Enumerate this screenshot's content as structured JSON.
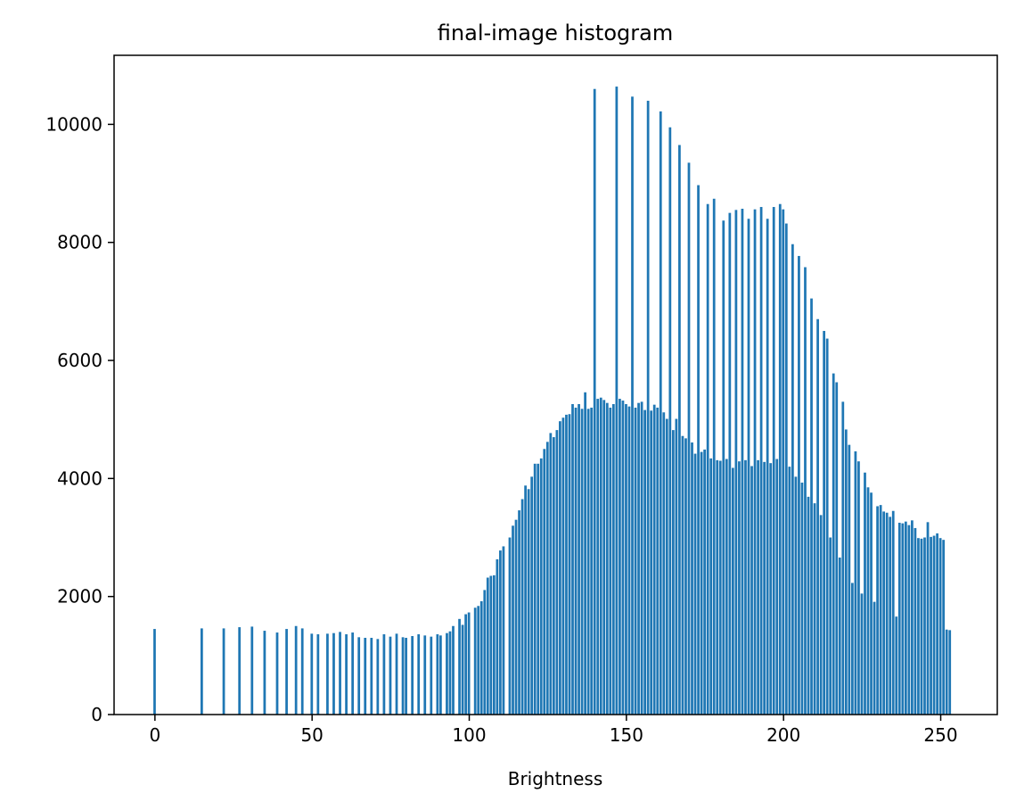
{
  "chart_data": {
    "type": "bar",
    "title": "final-image histogram",
    "xlabel": "Brightness",
    "ylabel": "",
    "xlim": [
      -13,
      268
    ],
    "ylim": [
      0,
      11170
    ],
    "xticks": [
      0,
      50,
      100,
      150,
      200,
      250
    ],
    "yticks": [
      0,
      2000,
      4000,
      6000,
      8000,
      10000
    ],
    "bar_color": "#1f77b4",
    "grid": false,
    "legend": "none",
    "bins": [
      [
        0,
        1450
      ],
      [
        15,
        1460
      ],
      [
        22,
        1460
      ],
      [
        27,
        1480
      ],
      [
        31,
        1490
      ],
      [
        35,
        1420
      ],
      [
        39,
        1390
      ],
      [
        42,
        1450
      ],
      [
        45,
        1500
      ],
      [
        47,
        1460
      ],
      [
        50,
        1370
      ],
      [
        52,
        1360
      ],
      [
        55,
        1370
      ],
      [
        57,
        1380
      ],
      [
        59,
        1400
      ],
      [
        61,
        1360
      ],
      [
        63,
        1390
      ],
      [
        65,
        1310
      ],
      [
        67,
        1300
      ],
      [
        69,
        1300
      ],
      [
        71,
        1280
      ],
      [
        73,
        1360
      ],
      [
        75,
        1320
      ],
      [
        77,
        1370
      ],
      [
        79,
        1310
      ],
      [
        80,
        1300
      ],
      [
        82,
        1330
      ],
      [
        84,
        1360
      ],
      [
        86,
        1340
      ],
      [
        88,
        1320
      ],
      [
        90,
        1360
      ],
      [
        91,
        1340
      ],
      [
        93,
        1380
      ],
      [
        94,
        1410
      ],
      [
        95,
        1500
      ],
      [
        97,
        1620
      ],
      [
        98,
        1520
      ],
      [
        99,
        1700
      ],
      [
        100,
        1730
      ],
      [
        102,
        1810
      ],
      [
        103,
        1840
      ],
      [
        104,
        1920
      ],
      [
        105,
        2110
      ],
      [
        106,
        2320
      ],
      [
        107,
        2350
      ],
      [
        108,
        2360
      ],
      [
        109,
        2630
      ],
      [
        110,
        2780
      ],
      [
        111,
        2850
      ],
      [
        113,
        3000
      ],
      [
        114,
        3200
      ],
      [
        115,
        3300
      ],
      [
        116,
        3460
      ],
      [
        117,
        3650
      ],
      [
        118,
        3880
      ],
      [
        119,
        3820
      ],
      [
        120,
        4030
      ],
      [
        121,
        4250
      ],
      [
        122,
        4250
      ],
      [
        123,
        4340
      ],
      [
        124,
        4500
      ],
      [
        125,
        4620
      ],
      [
        126,
        4770
      ],
      [
        127,
        4700
      ],
      [
        128,
        4820
      ],
      [
        129,
        4970
      ],
      [
        130,
        5030
      ],
      [
        131,
        5080
      ],
      [
        132,
        5090
      ],
      [
        133,
        5260
      ],
      [
        134,
        5200
      ],
      [
        135,
        5260
      ],
      [
        136,
        5180
      ],
      [
        137,
        5460
      ],
      [
        138,
        5180
      ],
      [
        139,
        5200
      ],
      [
        140,
        10600
      ],
      [
        141,
        5350
      ],
      [
        142,
        5370
      ],
      [
        143,
        5330
      ],
      [
        144,
        5280
      ],
      [
        145,
        5200
      ],
      [
        146,
        5260
      ],
      [
        147,
        10640
      ],
      [
        148,
        5350
      ],
      [
        149,
        5320
      ],
      [
        150,
        5260
      ],
      [
        151,
        5220
      ],
      [
        152,
        10470
      ],
      [
        153,
        5200
      ],
      [
        154,
        5280
      ],
      [
        155,
        5300
      ],
      [
        156,
        5160
      ],
      [
        157,
        10400
      ],
      [
        158,
        5150
      ],
      [
        159,
        5250
      ],
      [
        160,
        5200
      ],
      [
        161,
        10220
      ],
      [
        162,
        5120
      ],
      [
        163,
        5010
      ],
      [
        164,
        9950
      ],
      [
        165,
        4820
      ],
      [
        166,
        5010
      ],
      [
        167,
        9650
      ],
      [
        168,
        4720
      ],
      [
        169,
        4680
      ],
      [
        170,
        9350
      ],
      [
        171,
        4610
      ],
      [
        172,
        4420
      ],
      [
        173,
        8970
      ],
      [
        174,
        4450
      ],
      [
        175,
        4490
      ],
      [
        176,
        8650
      ],
      [
        177,
        4340
      ],
      [
        178,
        8740
      ],
      [
        179,
        4310
      ],
      [
        180,
        4300
      ],
      [
        181,
        8370
      ],
      [
        182,
        4330
      ],
      [
        183,
        8500
      ],
      [
        184,
        4180
      ],
      [
        185,
        8550
      ],
      [
        186,
        4290
      ],
      [
        187,
        8570
      ],
      [
        188,
        4310
      ],
      [
        189,
        8400
      ],
      [
        190,
        4210
      ],
      [
        191,
        8560
      ],
      [
        192,
        4310
      ],
      [
        193,
        8600
      ],
      [
        194,
        4280
      ],
      [
        195,
        8400
      ],
      [
        196,
        4260
      ],
      [
        197,
        8600
      ],
      [
        198,
        4330
      ],
      [
        199,
        8650
      ],
      [
        200,
        8560
      ],
      [
        201,
        8320
      ],
      [
        202,
        4200
      ],
      [
        203,
        7970
      ],
      [
        204,
        4030
      ],
      [
        205,
        7770
      ],
      [
        206,
        3930
      ],
      [
        207,
        7580
      ],
      [
        208,
        3690
      ],
      [
        209,
        7050
      ],
      [
        210,
        3580
      ],
      [
        211,
        6700
      ],
      [
        212,
        3380
      ],
      [
        213,
        6500
      ],
      [
        214,
        6370
      ],
      [
        215,
        3000
      ],
      [
        216,
        5780
      ],
      [
        217,
        5630
      ],
      [
        218,
        2660
      ],
      [
        219,
        5300
      ],
      [
        220,
        4830
      ],
      [
        221,
        4570
      ],
      [
        222,
        2230
      ],
      [
        223,
        4460
      ],
      [
        224,
        4290
      ],
      [
        225,
        2050
      ],
      [
        226,
        4100
      ],
      [
        227,
        3850
      ],
      [
        228,
        3760
      ],
      [
        229,
        1910
      ],
      [
        230,
        3530
      ],
      [
        231,
        3550
      ],
      [
        232,
        3440
      ],
      [
        233,
        3420
      ],
      [
        234,
        3350
      ],
      [
        235,
        3450
      ],
      [
        236,
        1660
      ],
      [
        237,
        3250
      ],
      [
        238,
        3240
      ],
      [
        239,
        3270
      ],
      [
        240,
        3210
      ],
      [
        241,
        3290
      ],
      [
        242,
        3160
      ],
      [
        243,
        2990
      ],
      [
        244,
        2980
      ],
      [
        245,
        3000
      ],
      [
        246,
        3260
      ],
      [
        247,
        3010
      ],
      [
        248,
        3030
      ],
      [
        249,
        3070
      ],
      [
        250,
        2990
      ],
      [
        251,
        2960
      ],
      [
        252,
        1440
      ],
      [
        253,
        1430
      ]
    ]
  }
}
